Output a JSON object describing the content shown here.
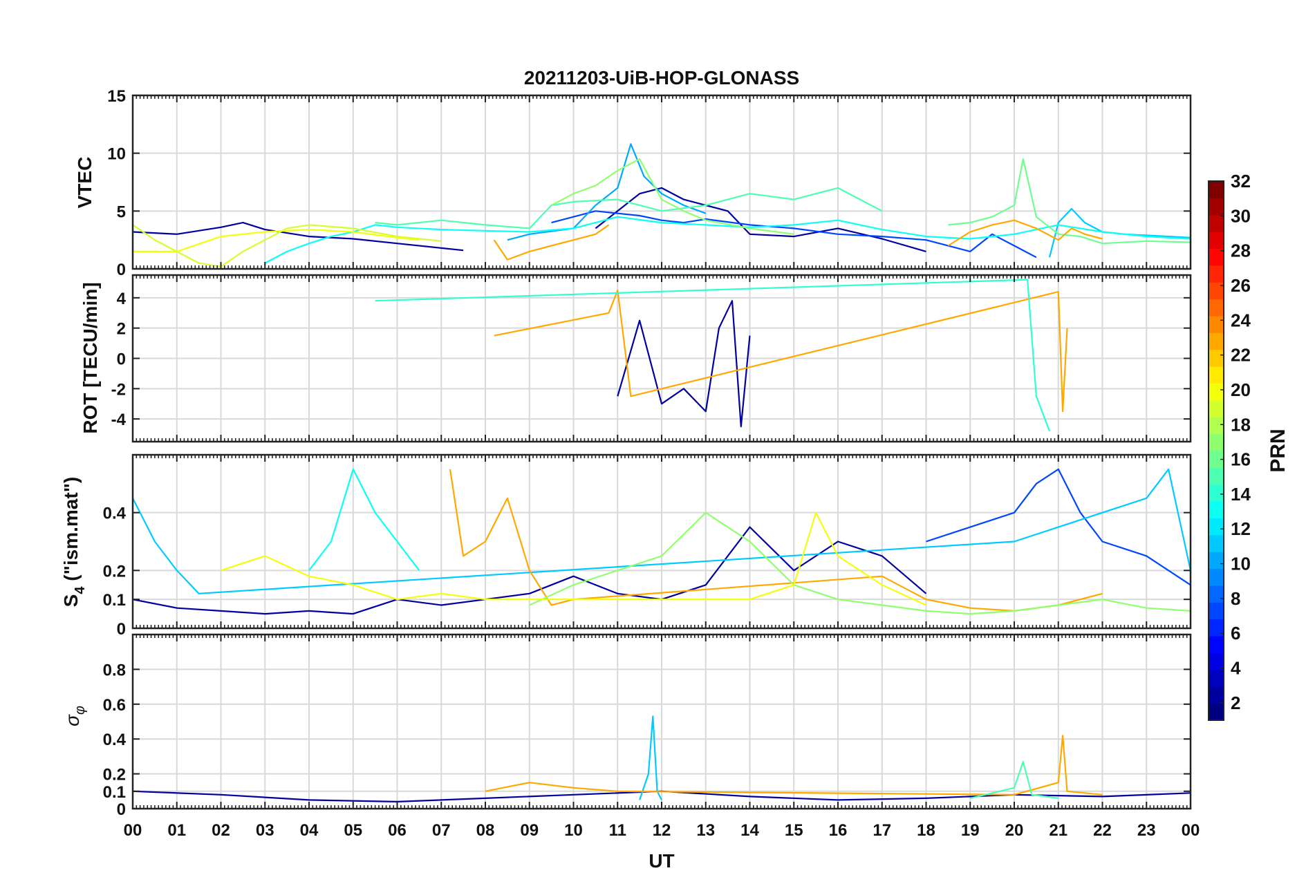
{
  "figure": {
    "title": "20211203-UiB-HOP-GLONASS",
    "xlabel": "UT",
    "x_ticks": [
      "00",
      "01",
      "02",
      "03",
      "04",
      "05",
      "06",
      "07",
      "08",
      "09",
      "10",
      "11",
      "12",
      "13",
      "14",
      "15",
      "16",
      "17",
      "18",
      "19",
      "20",
      "21",
      "22",
      "23",
      "00"
    ]
  },
  "colorbar": {
    "label": "PRN",
    "range": [
      1,
      32
    ],
    "ticks": [
      "2",
      "4",
      "6",
      "8",
      "10",
      "12",
      "14",
      "16",
      "18",
      "20",
      "22",
      "24",
      "26",
      "28",
      "30",
      "32"
    ],
    "tick_values": [
      2,
      4,
      6,
      8,
      10,
      12,
      14,
      16,
      18,
      20,
      22,
      24,
      26,
      28,
      30,
      32
    ]
  },
  "chart_data": [
    {
      "type": "line",
      "id": "vtec",
      "ylabel": "VTEC",
      "ylim": [
        0,
        15
      ],
      "yticks": [
        0,
        5,
        10,
        15
      ],
      "ytick_labels": [
        "0",
        "5",
        "10",
        "15"
      ],
      "xlim": [
        0,
        24
      ],
      "grid": true,
      "series": [
        {
          "name": "PRN 2",
          "prn": 2,
          "x": [
            0,
            1,
            2,
            2.5,
            3,
            4,
            5,
            6,
            7,
            7.5
          ],
          "values": [
            3.2,
            3.0,
            3.6,
            4.0,
            3.4,
            2.8,
            2.6,
            2.2,
            1.8,
            1.6
          ]
        },
        {
          "name": "PRN 2b",
          "prn": 2,
          "x": [
            10.5,
            11,
            11.5,
            12,
            12.5,
            13,
            13.5,
            14,
            15,
            16,
            17,
            18
          ],
          "values": [
            3.5,
            5.0,
            6.5,
            7.0,
            6.0,
            5.5,
            5.0,
            3.0,
            2.8,
            3.5,
            2.6,
            1.5
          ]
        },
        {
          "name": "PRN 7",
          "prn": 7,
          "x": [
            9.5,
            10,
            10.5,
            11,
            11.5,
            12,
            12.5,
            13,
            14,
            15,
            16,
            17,
            18,
            19,
            19.5,
            20,
            20.5
          ],
          "values": [
            4.0,
            4.5,
            5.0,
            4.8,
            4.6,
            4.2,
            4.0,
            4.3,
            3.8,
            3.5,
            3.0,
            2.8,
            2.5,
            1.5,
            3.0,
            2.0,
            1.0
          ]
        },
        {
          "name": "PRN 10",
          "prn": 10,
          "x": [
            8.5,
            9,
            10,
            10.5,
            11,
            11.3,
            11.6,
            12,
            12.5,
            13
          ],
          "values": [
            2.5,
            3.0,
            3.5,
            5.5,
            7.0,
            10.8,
            8.0,
            6.5,
            5.5,
            4.8
          ]
        },
        {
          "name": "PRN 11",
          "prn": 11,
          "x": [
            20.8,
            21,
            21.3,
            21.6,
            22,
            22.5,
            23,
            23.5,
            24
          ],
          "values": [
            1.0,
            4.0,
            5.2,
            4.0,
            3.2,
            3.0,
            2.9,
            2.8,
            2.7
          ]
        },
        {
          "name": "PRN 13",
          "prn": 13,
          "x": [
            3,
            3.5,
            4,
            4.5,
            5,
            5.5,
            6,
            7,
            8,
            9,
            10,
            11,
            12,
            13,
            14,
            15,
            16,
            17,
            18,
            19,
            20,
            21,
            22,
            23,
            24
          ],
          "values": [
            0.5,
            1.5,
            2.2,
            2.8,
            3.2,
            3.8,
            3.6,
            3.4,
            3.3,
            3.2,
            3.5,
            4.5,
            4.0,
            3.8,
            3.6,
            3.8,
            4.2,
            3.4,
            2.8,
            2.6,
            3.0,
            3.8,
            3.2,
            2.8,
            2.6
          ]
        },
        {
          "name": "PRN 15",
          "prn": 15,
          "x": [
            5.5,
            6,
            7,
            8,
            9,
            9.5,
            10,
            11,
            12,
            13,
            14,
            15,
            15.5,
            16,
            16.5,
            17
          ],
          "values": [
            4.0,
            3.8,
            4.2,
            3.8,
            3.5,
            5.5,
            5.8,
            6.0,
            5.0,
            5.5,
            6.5,
            6.0,
            6.5,
            7.0,
            6.0,
            5.0
          ]
        },
        {
          "name": "PRN 17",
          "prn": 17,
          "x": [
            9.5,
            10,
            10.5,
            11,
            11.5,
            12,
            12.5,
            13,
            14,
            15
          ],
          "values": [
            5.5,
            6.5,
            7.2,
            8.5,
            9.5,
            6.0,
            5.0,
            4.2,
            3.5,
            3.0
          ]
        },
        {
          "name": "PRN 16",
          "prn": 16,
          "x": [
            18.5,
            19,
            19.5,
            20,
            20.2,
            20.5,
            21,
            21.5,
            22,
            23,
            24
          ],
          "values": [
            3.8,
            4.0,
            4.5,
            5.5,
            9.5,
            4.5,
            3.0,
            2.8,
            2.2,
            2.4,
            2.3
          ]
        },
        {
          "name": "PRN 19",
          "prn": 19,
          "x": [
            0,
            0.5,
            1,
            1.5,
            2,
            2.5,
            3,
            3.5,
            4,
            5,
            6,
            7
          ],
          "values": [
            3.8,
            2.5,
            1.5,
            0.5,
            0.2,
            1.5,
            2.5,
            3.5,
            3.8,
            3.5,
            2.8,
            2.4
          ]
        },
        {
          "name": "PRN 20",
          "prn": 20,
          "x": [
            0,
            1,
            2,
            3,
            4,
            5,
            6,
            6.5
          ],
          "values": [
            1.5,
            1.5,
            2.8,
            3.2,
            3.4,
            3.2,
            2.7,
            2.5
          ]
        },
        {
          "name": "PRN 23",
          "prn": 23,
          "x": [
            8.2,
            8.5,
            9,
            9.5,
            10,
            10.5,
            10.8
          ],
          "values": [
            2.5,
            0.8,
            1.5,
            2.0,
            2.5,
            3.0,
            3.8
          ]
        },
        {
          "name": "PRN 23b",
          "prn": 23,
          "x": [
            18.5,
            19,
            19.5,
            20,
            20.5,
            21,
            21.3,
            21.6,
            22
          ],
          "values": [
            2.0,
            3.2,
            3.8,
            4.2,
            3.5,
            2.5,
            3.5,
            3.0,
            2.6
          ]
        }
      ]
    },
    {
      "type": "line",
      "id": "rot",
      "ylabel": "ROT [TECU/min]",
      "ylim": [
        -5.5,
        5.5
      ],
      "yticks": [
        -4,
        -2,
        0,
        2,
        4
      ],
      "ytick_labels": [
        "-4",
        "-2",
        "0",
        "2",
        "4"
      ],
      "xlim": [
        0,
        24
      ],
      "grid": true,
      "series": [
        {
          "name": "PRN 2",
          "prn": 2,
          "x": [
            11,
            11.5,
            12,
            12.5,
            13,
            13.3,
            13.6,
            13.8,
            14
          ],
          "values": [
            -2.5,
            2.5,
            -3.0,
            -2.0,
            -3.5,
            2.0,
            3.8,
            -4.5,
            1.5
          ]
        },
        {
          "name": "PRN 23",
          "prn": 23,
          "x": [
            8.2,
            10.8,
            11,
            11.3,
            21,
            21.1,
            21.2
          ],
          "values": [
            1.5,
            3.0,
            4.5,
            -2.5,
            4.4,
            -3.5,
            2.0
          ]
        },
        {
          "name": "PRN 14",
          "prn": 14,
          "x": [
            5.5,
            20.3,
            20.5,
            20.8
          ],
          "values": [
            3.8,
            5.2,
            -2.5,
            -4.8
          ]
        }
      ]
    },
    {
      "type": "line",
      "id": "s4",
      "ylabel": "S4 (\"ism.mat\")",
      "ylabel_main": "S",
      "ylabel_sub": "4",
      "ylabel_rest": " (\"ism.mat\")",
      "ylim": [
        0,
        0.6
      ],
      "yticks": [
        0,
        0.1,
        0.2,
        0.4
      ],
      "ytick_labels": [
        "0",
        "0.1",
        "0.2",
        "0.4"
      ],
      "xlim": [
        0,
        24
      ],
      "grid": true,
      "series": [
        {
          "name": "PRN 2",
          "prn": 2,
          "x": [
            0,
            1,
            2,
            3,
            4,
            5,
            6,
            7,
            8,
            9,
            10,
            11,
            12,
            13,
            14,
            15,
            16,
            17,
            18
          ],
          "values": [
            0.1,
            0.07,
            0.06,
            0.05,
            0.06,
            0.05,
            0.1,
            0.08,
            0.1,
            0.12,
            0.18,
            0.12,
            0.1,
            0.15,
            0.35,
            0.2,
            0.3,
            0.25,
            0.12
          ]
        },
        {
          "name": "PRN 7",
          "prn": 7,
          "x": [
            18,
            19,
            20,
            20.5,
            21,
            21.5,
            22,
            23,
            24
          ],
          "values": [
            0.3,
            0.35,
            0.4,
            0.5,
            0.55,
            0.4,
            0.3,
            0.25,
            0.15
          ]
        },
        {
          "name": "PRN 11",
          "prn": 11,
          "x": [
            0,
            0.5,
            1,
            1.5,
            20,
            22,
            23,
            23.5,
            24
          ],
          "values": [
            0.45,
            0.3,
            0.2,
            0.12,
            0.3,
            0.4,
            0.45,
            0.55,
            0.2
          ]
        },
        {
          "name": "PRN 13",
          "prn": 13,
          "x": [
            4,
            4.5,
            5,
            5.5,
            6,
            6.5
          ],
          "values": [
            0.2,
            0.3,
            0.55,
            0.4,
            0.3,
            0.2
          ]
        },
        {
          "name": "PRN 23",
          "prn": 23,
          "x": [
            7.2,
            7.5,
            8,
            8.5,
            9,
            9.5,
            10,
            17,
            18,
            19,
            20,
            21,
            22
          ],
          "values": [
            0.55,
            0.25,
            0.3,
            0.45,
            0.2,
            0.08,
            0.1,
            0.18,
            0.1,
            0.07,
            0.06,
            0.08,
            0.12
          ]
        },
        {
          "name": "PRN 17",
          "prn": 17,
          "x": [
            9,
            10,
            11,
            12,
            13,
            14,
            15,
            16,
            17,
            18,
            19,
            20,
            21,
            22,
            23,
            24
          ],
          "values": [
            0.08,
            0.15,
            0.2,
            0.25,
            0.4,
            0.3,
            0.15,
            0.1,
            0.08,
            0.06,
            0.05,
            0.06,
            0.08,
            0.1,
            0.07,
            0.06
          ]
        },
        {
          "name": "PRN 20",
          "prn": 20,
          "x": [
            2,
            3,
            4,
            5,
            6,
            7,
            8,
            14,
            15,
            15.5,
            16,
            17,
            18
          ],
          "values": [
            0.2,
            0.25,
            0.18,
            0.15,
            0.1,
            0.12,
            0.1,
            0.1,
            0.15,
            0.4,
            0.25,
            0.15,
            0.08
          ]
        }
      ]
    },
    {
      "type": "line",
      "id": "sigma_phi",
      "ylabel": "σ φ",
      "ylabel_main": "σ",
      "ylabel_sub": "φ",
      "ylim": [
        0,
        1
      ],
      "yticks": [
        0,
        0.1,
        0.2,
        0.4,
        0.6,
        0.8
      ],
      "ytick_labels": [
        "0",
        "0.1",
        "0.2",
        "0.4",
        "0.6",
        "0.8"
      ],
      "xlim": [
        0,
        24
      ],
      "grid": true,
      "series": [
        {
          "name": "PRN 2",
          "prn": 2,
          "x": [
            0,
            2,
            4,
            6,
            8,
            10,
            12,
            14,
            16,
            18,
            20,
            22,
            24
          ],
          "values": [
            0.1,
            0.08,
            0.05,
            0.04,
            0.06,
            0.08,
            0.1,
            0.07,
            0.05,
            0.06,
            0.08,
            0.07,
            0.09
          ]
        },
        {
          "name": "PRN 11",
          "prn": 11,
          "x": [
            11.5,
            11.7,
            11.8,
            11.9,
            12
          ],
          "values": [
            0.05,
            0.2,
            0.53,
            0.1,
            0.05
          ]
        },
        {
          "name": "PRN 23",
          "prn": 23,
          "x": [
            8,
            9,
            10,
            11,
            20,
            21,
            21.1,
            21.2,
            22
          ],
          "values": [
            0.1,
            0.15,
            0.12,
            0.1,
            0.08,
            0.15,
            0.42,
            0.1,
            0.08
          ]
        },
        {
          "name": "PRN 15",
          "prn": 15,
          "x": [
            19,
            20,
            20.2,
            20.4,
            21
          ],
          "values": [
            0.06,
            0.12,
            0.27,
            0.08,
            0.06
          ]
        }
      ]
    }
  ]
}
